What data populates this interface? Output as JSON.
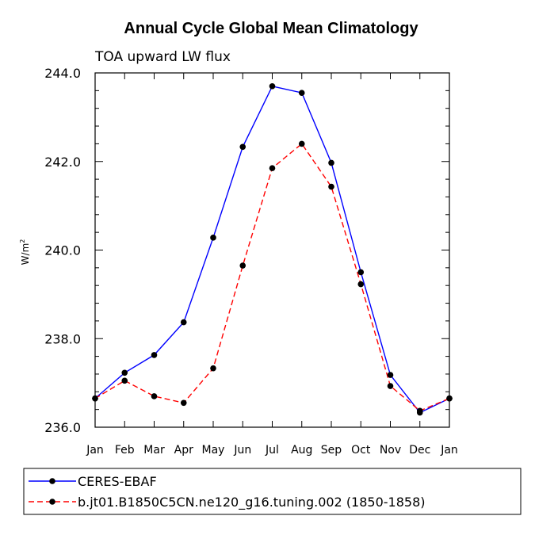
{
  "chart_data": {
    "type": "line",
    "title": "Annual Cycle Global Mean Climatology",
    "subtitle": "TOA upward LW flux",
    "ylabel": "W/m",
    "ylabel_superscript": "2",
    "xlabel": "",
    "categories": [
      "Jan",
      "Feb",
      "Mar",
      "Apr",
      "May",
      "Jun",
      "Jul",
      "Aug",
      "Sep",
      "Oct",
      "Nov",
      "Dec",
      "Jan"
    ],
    "ylim": [
      236.0,
      244.0
    ],
    "yticks": [
      236.0,
      238.0,
      240.0,
      242.0,
      244.0
    ],
    "ytick_labels": [
      "236.0",
      "238.0",
      "240.0",
      "242.0",
      "244.0"
    ],
    "grid": false,
    "legend_position": "bottom",
    "series": [
      {
        "name": "CERES-EBAF",
        "color": "#0000ff",
        "dash": "solid",
        "values": [
          236.65,
          237.23,
          237.63,
          238.37,
          240.28,
          242.33,
          243.7,
          243.55,
          241.97,
          239.5,
          237.18,
          236.33,
          236.65
        ]
      },
      {
        "name": "b.jt01.B1850C5CN.ne120_g16.tuning.002 (1850-1858)",
        "color": "#ff0000",
        "dash": "dashed",
        "values": [
          236.65,
          237.05,
          236.7,
          236.55,
          237.33,
          239.65,
          241.85,
          242.4,
          241.43,
          239.23,
          236.93,
          236.37,
          236.65
        ]
      }
    ]
  }
}
